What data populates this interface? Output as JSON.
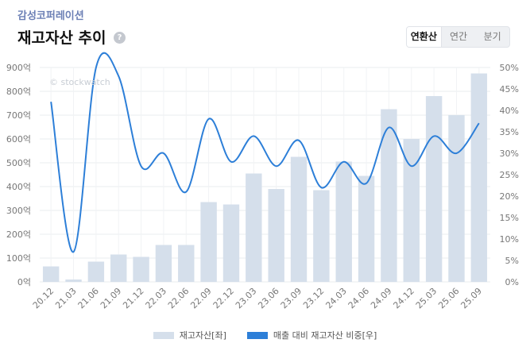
{
  "header": {
    "company": "감성코퍼레이션",
    "title": "재고자산 추이",
    "help": "?",
    "tabs": [
      {
        "label": "연환산",
        "active": true
      },
      {
        "label": "연간",
        "active": false
      },
      {
        "label": "분기",
        "active": false
      }
    ]
  },
  "colors": {
    "bar": "#d5dfeb",
    "line": "#2d7fd8",
    "grid": "#e9ecef",
    "text": "#777777"
  },
  "chart_data": {
    "type": "bar",
    "title": "재고자산 추이",
    "watermark": "© stockwatch",
    "categories": [
      "20.12",
      "21.03",
      "21.06",
      "21.09",
      "21.12",
      "22.03",
      "22.06",
      "22.09",
      "22.12",
      "23.03",
      "23.06",
      "23.09",
      "23.12",
      "24.03",
      "24.06",
      "24.09",
      "24.12",
      "25.03",
      "25.06",
      "25.09"
    ],
    "series": [
      {
        "name": "재고자산[좌]",
        "type": "bar",
        "axis": "left",
        "values": [
          65,
          10,
          85,
          115,
          105,
          155,
          155,
          335,
          325,
          455,
          390,
          525,
          385,
          505,
          445,
          725,
          600,
          780,
          700,
          875
        ]
      },
      {
        "name": "매출 대비 재고자산 비중[우]",
        "type": "line",
        "axis": "right",
        "values": [
          42,
          7,
          50,
          48,
          27,
          30,
          21,
          38,
          28,
          34,
          27,
          33,
          22,
          28,
          23,
          36,
          27,
          34,
          30,
          37
        ]
      }
    ],
    "yleft": {
      "min": 0,
      "max": 900,
      "ticks": [
        "0억",
        "100억",
        "200억",
        "300억",
        "400억",
        "500억",
        "600억",
        "700억",
        "800억",
        "900억"
      ]
    },
    "yright": {
      "min": 0,
      "max": 50,
      "ticks": [
        "0%",
        "5%",
        "10%",
        "15%",
        "20%",
        "25%",
        "30%",
        "35%",
        "40%",
        "45%",
        "50%"
      ]
    }
  },
  "legend": {
    "bar_label": "재고자산[좌]",
    "line_label": "매출 대비 재고자산 비중[우]"
  }
}
